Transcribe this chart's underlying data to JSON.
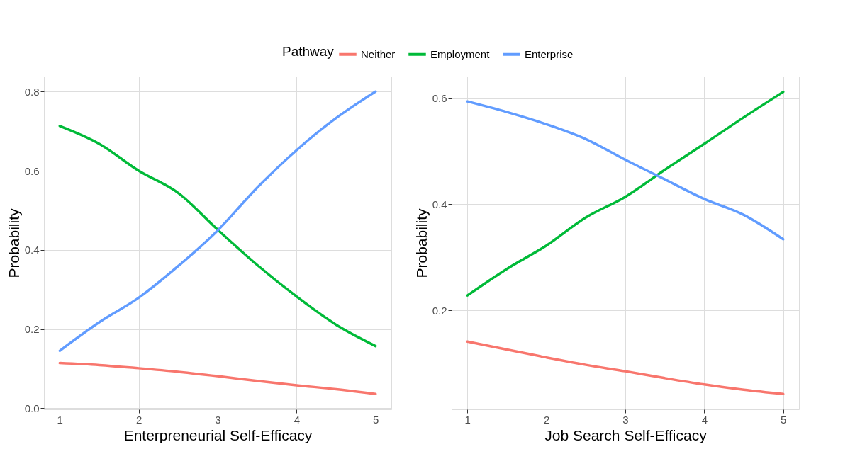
{
  "chart_data": [
    {
      "type": "line",
      "xlabel": "Enterpreneurial Self-Efficacy",
      "ylabel": "Probability",
      "legend_title": "Pathway",
      "legend": "top",
      "grid": true,
      "line_style": "solid",
      "x": [
        1,
        1.5,
        2,
        2.5,
        3,
        3.5,
        4,
        4.5,
        5
      ],
      "xlim": [
        0.8,
        5.2
      ],
      "xticks": [
        1,
        2,
        3,
        4,
        5
      ],
      "ylim": [
        -0.003,
        0.838
      ],
      "yticks": [
        {
          "value": 0,
          "label": "0.0"
        },
        {
          "value": 0.2,
          "label": "0.2"
        },
        {
          "value": 0.4,
          "label": "0.4"
        },
        {
          "value": 0.6,
          "label": "0.6"
        },
        {
          "value": 0.8,
          "label": "0.8"
        }
      ],
      "series": [
        {
          "name": "Neither",
          "color": "#f8766d",
          "values": [
            0.114,
            0.109,
            0.101,
            0.092,
            0.081,
            0.069,
            0.058,
            0.048,
            0.036
          ]
        },
        {
          "name": "Employment",
          "color": "#00ba38",
          "values": [
            0.713,
            0.668,
            0.6,
            0.544,
            0.451,
            0.362,
            0.282,
            0.211,
            0.157
          ]
        },
        {
          "name": "Enterprise",
          "color": "#619cff",
          "values": [
            0.145,
            0.217,
            0.279,
            0.359,
            0.449,
            0.557,
            0.652,
            0.733,
            0.8
          ]
        }
      ]
    },
    {
      "type": "line",
      "xlabel": "Job Search Self-Efficacy",
      "ylabel": "Probability",
      "grid": true,
      "line_style": "solid",
      "x": [
        1,
        1.5,
        2,
        2.5,
        3,
        3.5,
        4,
        4.5,
        5
      ],
      "xlim": [
        0.8,
        5.2
      ],
      "xticks": [
        1,
        2,
        3,
        4,
        5
      ],
      "ylim": [
        0.013,
        0.641
      ],
      "yticks": [
        0.2,
        0.4,
        0.6
      ],
      "series": [
        {
          "name": "Neither",
          "color": "#f8766d",
          "values": [
            0.141,
            0.126,
            0.111,
            0.097,
            0.085,
            0.072,
            0.06,
            0.05,
            0.042
          ]
        },
        {
          "name": "Employment",
          "color": "#00ba38",
          "values": [
            0.228,
            0.278,
            0.322,
            0.375,
            0.414,
            0.465,
            0.514,
            0.564,
            0.612
          ]
        },
        {
          "name": "Enterprise",
          "color": "#619cff",
          "values": [
            0.594,
            0.574,
            0.551,
            0.523,
            0.484,
            0.447,
            0.41,
            0.38,
            0.334
          ]
        }
      ]
    }
  ]
}
